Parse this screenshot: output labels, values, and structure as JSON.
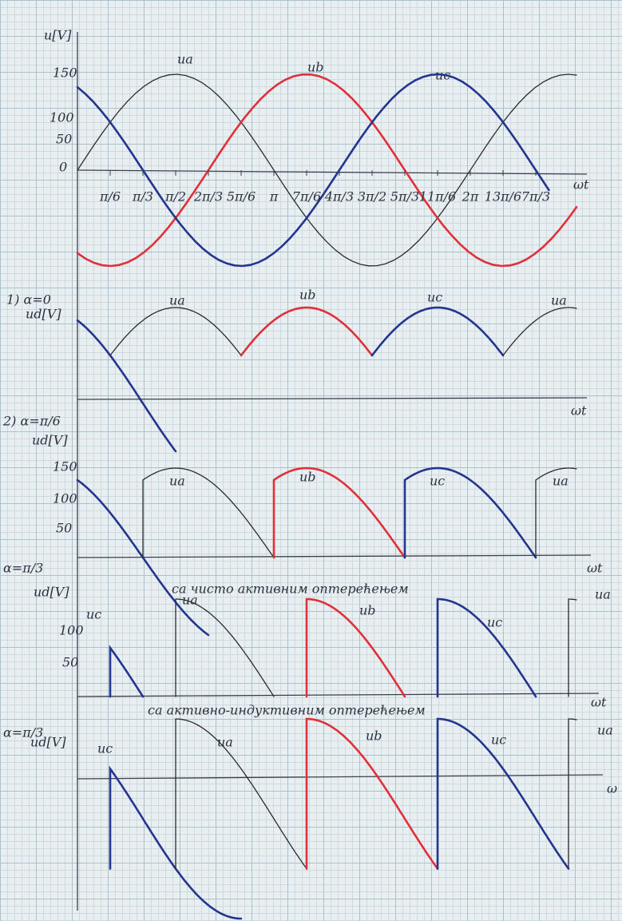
{
  "panels": [
    {
      "axis_label": "u[V]",
      "tick_labels": [
        "150",
        "100",
        "50",
        "0"
      ],
      "x_labels": [
        "π/6",
        "π/3",
        "π/2",
        "2π/3",
        "5π/6",
        "π",
        "7π/6",
        "4π/3",
        "3π/2",
        "5π/3",
        "11π/6",
        "2π",
        "13π/6",
        "7π/3"
      ],
      "x_axis": "ωt",
      "curve_labels": [
        "ua",
        "ub",
        "uc"
      ]
    },
    {
      "heading": "1) α=0",
      "axis_label": "ud[V]",
      "curve_labels": [
        "ua",
        "ub",
        "uc",
        "ua"
      ],
      "x_axis": "ωt"
    },
    {
      "heading": "2) α=π/6",
      "axis_label": "ud[V]",
      "tick_labels": [
        "150",
        "100",
        "50"
      ],
      "curve_labels": [
        "ua",
        "ub",
        "uc",
        "ua"
      ],
      "x_axis": "ωt"
    },
    {
      "heading": "α=π/3",
      "axis_label": "ud[V]",
      "caption": "са чисто активним оптерећењем",
      "tick_labels": [
        "100",
        "50"
      ],
      "curve_labels": [
        "uc",
        "ua",
        "ub",
        "uc",
        "ua"
      ],
      "x_axis": "ωt"
    },
    {
      "heading": "α=π/3",
      "axis_label": "ud[V]",
      "caption": "са активно-индуктивним оптерећењем",
      "curve_labels": [
        "uc",
        "ua",
        "ub",
        "uc",
        "ua"
      ],
      "x_axis": "ω"
    }
  ]
}
